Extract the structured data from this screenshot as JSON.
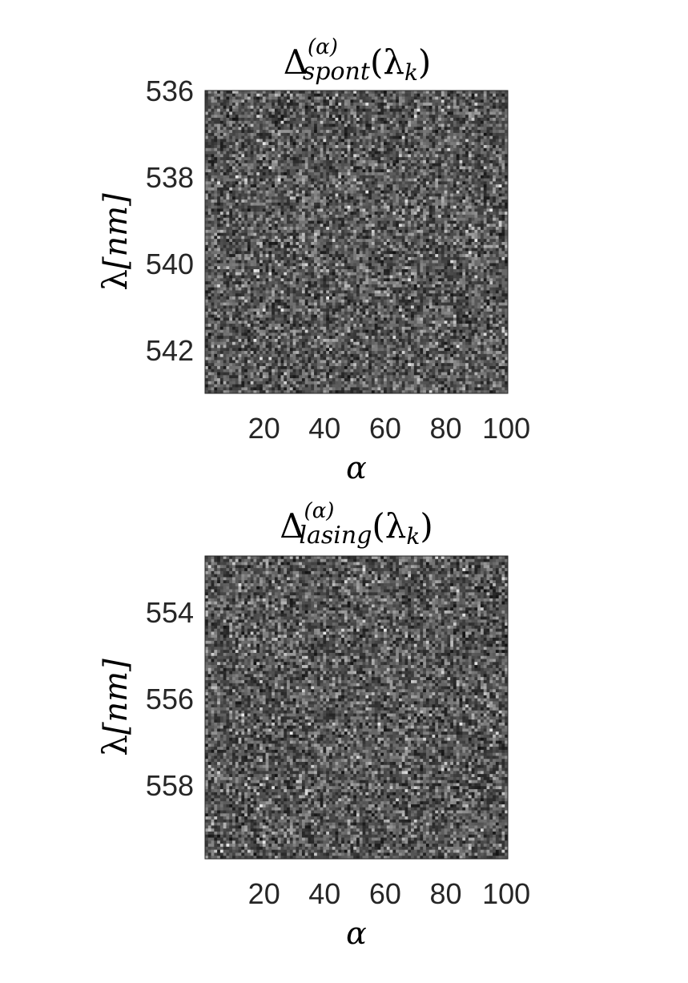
{
  "chart_data": [
    {
      "type": "heatmap",
      "title_parts": {
        "symbol": "Δ",
        "superscript": "(α)",
        "subscript": "spont",
        "argument": "(λ",
        "argument_subscript": "k",
        "argument_close": ")"
      },
      "xlabel": "α",
      "ylabel": {
        "symbol": "λ",
        "unit": "[nm]"
      },
      "xticks": [
        "20",
        "40",
        "60",
        "80",
        "100"
      ],
      "xtick_values": [
        20,
        40,
        60,
        80,
        100
      ],
      "yticks": [
        "536",
        "538",
        "540",
        "542"
      ],
      "ytick_values": [
        536,
        538,
        540,
        542
      ],
      "xlim": [
        0.5,
        100.5
      ],
      "ylim": [
        536,
        543
      ],
      "y_direction": "reversed",
      "colormap": "gray",
      "grid": false,
      "cells": {
        "columns": 100,
        "rows": 100,
        "seed": 7,
        "description_level": "noise"
      }
    },
    {
      "type": "heatmap",
      "title_parts": {
        "symbol": "Δ",
        "superscript": "(α)",
        "subscript": "lasing",
        "argument": "(λ",
        "argument_subscript": "k",
        "argument_close": ")"
      },
      "xlabel": "α",
      "ylabel": {
        "symbol": "λ",
        "unit": "[nm]"
      },
      "xticks": [
        "20",
        "40",
        "60",
        "80",
        "100"
      ],
      "xtick_values": [
        20,
        40,
        60,
        80,
        100
      ],
      "yticks": [
        "554",
        "556",
        "558"
      ],
      "ytick_values": [
        554,
        556,
        558
      ],
      "xlim": [
        0.5,
        100.5
      ],
      "ylim": [
        552.7,
        559.7
      ],
      "y_direction": "reversed",
      "colormap": "gray",
      "grid": false,
      "cells": {
        "columns": 100,
        "rows": 100,
        "seed": 13,
        "description_level": "noise"
      }
    }
  ]
}
